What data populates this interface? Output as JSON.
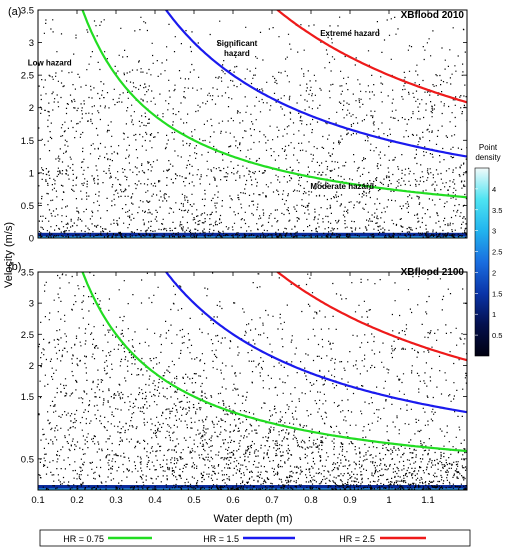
{
  "chart_data": [
    {
      "panel_label": "(a)",
      "title": "XBflood 2010",
      "type": "scatter",
      "xlabel": "Water depth (m)",
      "ylabel": "Velocity (m/s)",
      "xlim": [
        0.1,
        1.2
      ],
      "ylim": [
        0,
        3.5
      ],
      "x_ticks": [
        0.1,
        0.2,
        0.3,
        0.4,
        0.5,
        0.6,
        0.7,
        0.8,
        0.9,
        1,
        1.1
      ],
      "y_ticks": [
        0,
        0.5,
        1,
        1.5,
        2,
        2.5,
        3,
        3.5
      ],
      "y_tick_labels": [
        "0",
        "0.5",
        "1",
        "1.5",
        "2",
        "2.5",
        "3",
        "3.5"
      ],
      "annotations": [
        {
          "text": "Low hazard",
          "x": 0.13,
          "y": 2.65
        },
        {
          "text": "Significant hazard",
          "x": 0.61,
          "y": 2.95
        },
        {
          "text": "Extreme hazard",
          "x": 0.9,
          "y": 3.1
        },
        {
          "text": "Moderate hazard",
          "x": 0.88,
          "y": 0.75
        }
      ],
      "curves": [
        {
          "name": "HR = 0.75",
          "hr": 0.75,
          "color": "#22dd22"
        },
        {
          "name": "HR = 1.5",
          "hr": 1.5,
          "color": "#1a1aee"
        },
        {
          "name": "HR = 2.5",
          "hr": 2.5,
          "color": "#ee1a1a"
        }
      ]
    },
    {
      "panel_label": "(b)",
      "title": "XBflood 2100",
      "type": "scatter",
      "xlabel": "Water depth (m)",
      "ylabel": "Velocity (m/s)",
      "xlim": [
        0.1,
        1.2
      ],
      "ylim": [
        0,
        3.5
      ],
      "x_ticks": [
        0.1,
        0.2,
        0.3,
        0.4,
        0.5,
        0.6,
        0.7,
        0.8,
        0.9,
        1,
        1.1
      ],
      "x_tick_labels": [
        "0.1",
        "0.2",
        "0.3",
        "0.4",
        "0.5",
        "0.6",
        "0.7",
        "0.8",
        "0.9",
        "1",
        "1.1"
      ],
      "y_ticks": [
        0.5,
        1.5,
        2,
        2.5,
        3,
        3.5
      ],
      "y_tick_labels": [
        "0.5",
        "1.5",
        "2",
        "2.5",
        "3",
        "3.5"
      ],
      "annotations": [],
      "curves": [
        {
          "name": "HR = 0.75",
          "hr": 0.75,
          "color": "#22dd22"
        },
        {
          "name": "HR = 1.5",
          "hr": 1.5,
          "color": "#1a1aee"
        },
        {
          "name": "HR = 2.5",
          "hr": 2.5,
          "color": "#ee1a1a"
        }
      ]
    }
  ],
  "colorbar": {
    "title_line1": "Point",
    "title_line2": "density",
    "ticks": [
      0.5,
      1,
      1.5,
      2,
      2.5,
      3,
      3.5,
      4
    ],
    "range": [
      0,
      4.5
    ],
    "colors": [
      "#000010",
      "#04104e",
      "#0a34a8",
      "#1a6ee0",
      "#22b4ee",
      "#4ee4f2",
      "#f2fafa"
    ]
  },
  "xlabel": "Water depth (m)",
  "ylabel": "Velocity (m/s)",
  "legend": [
    {
      "label": "HR = 0.75",
      "color": "#22dd22"
    },
    {
      "label": "HR = 1.5",
      "color": "#1a1aee"
    },
    {
      "label": "HR = 2.5",
      "color": "#ee1a1a"
    }
  ]
}
